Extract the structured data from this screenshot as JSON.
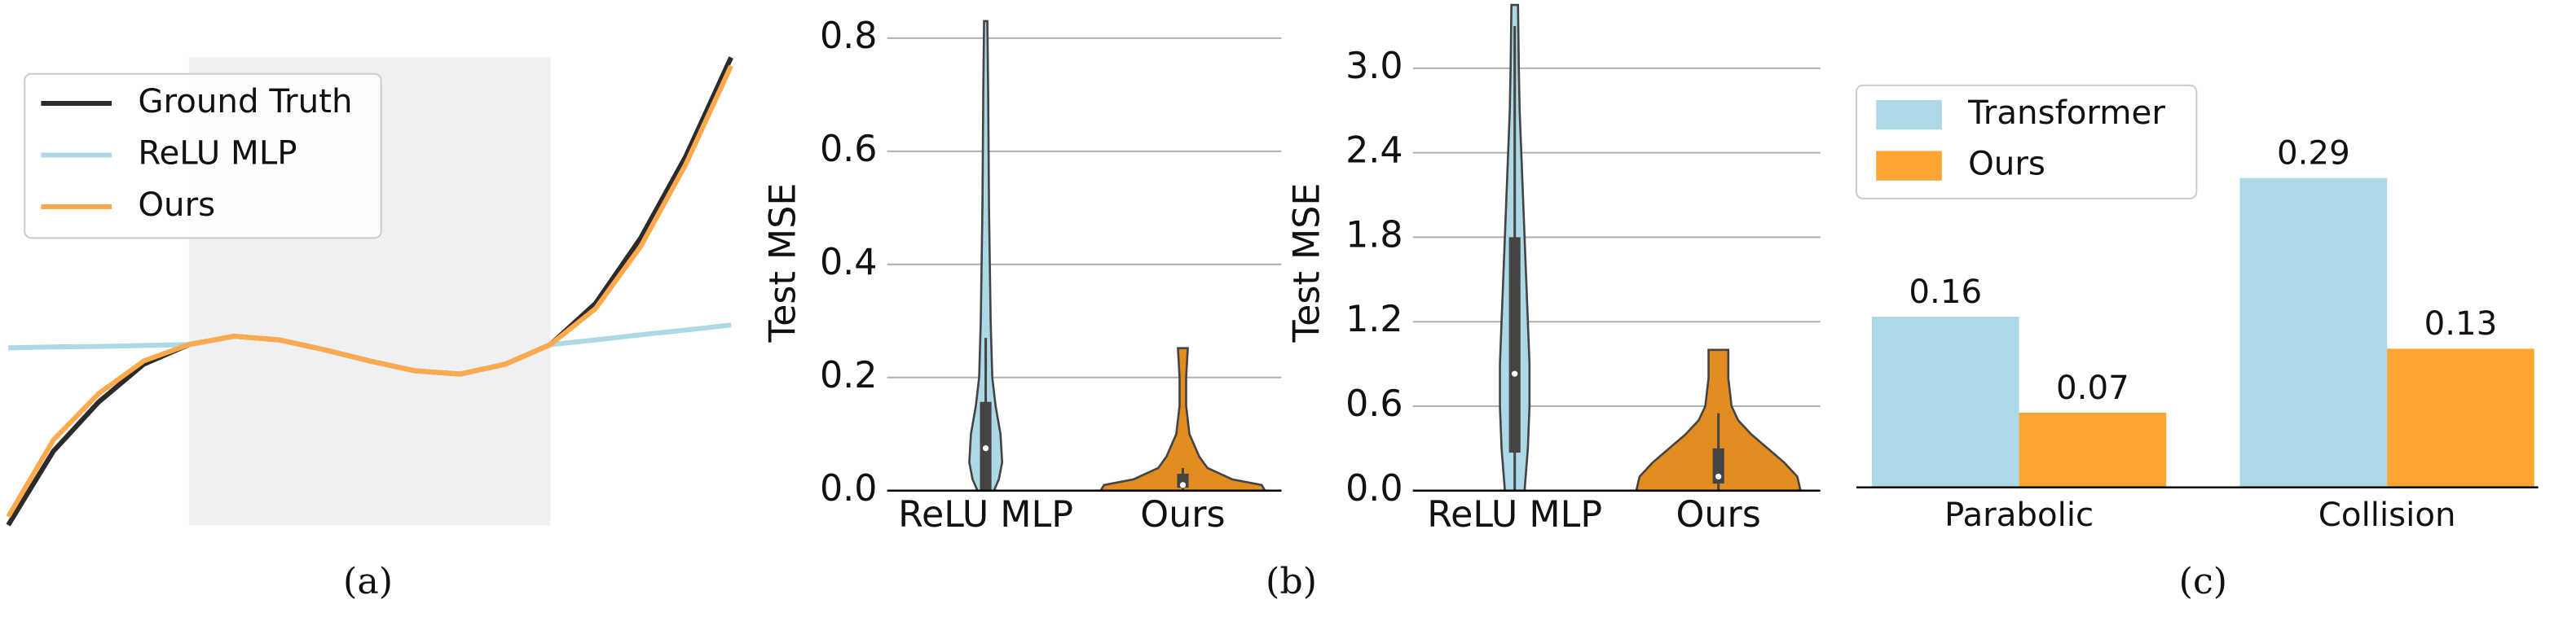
{
  "chart_data": [
    {
      "type": "line",
      "xlim": [
        -2,
        2
      ],
      "ylim": [
        0,
        10
      ],
      "highlight_x": [
        -1,
        1
      ],
      "x": [
        -2,
        -1.75,
        -1.5,
        -1.25,
        -1,
        -0.75,
        -0.5,
        -0.25,
        0,
        0.25,
        0.5,
        0.75,
        1,
        1.25,
        1.5,
        1.75,
        2
      ],
      "series": [
        {
          "name": "Ground Truth",
          "color": "#2b2b2b",
          "values": [
            0,
            1.58,
            2.63,
            3.44,
            3.86,
            4.04,
            3.96,
            3.75,
            3.51,
            3.3,
            3.23,
            3.44,
            3.86,
            4.74,
            6.14,
            7.89,
            10
          ]
        },
        {
          "name": "ReLU MLP",
          "color": "#add8e6",
          "values": [
            3.79,
            3.81,
            3.82,
            3.84,
            3.86,
            4.04,
            3.96,
            3.75,
            3.51,
            3.3,
            3.23,
            3.44,
            3.86,
            3.96,
            4.07,
            4.17,
            4.28
          ]
        },
        {
          "name": "Ours",
          "color": "#ffa94d",
          "values": [
            0.18,
            1.82,
            2.81,
            3.51,
            3.86,
            4.04,
            3.96,
            3.75,
            3.51,
            3.3,
            3.23,
            3.44,
            3.86,
            4.63,
            5.96,
            7.72,
            9.82
          ]
        }
      ],
      "legend": "upper left"
    },
    {
      "type": "violin",
      "y_label": "Test MSE",
      "ylim": [
        0,
        0.85
      ],
      "yticks": [
        {
          "value": 0,
          "label": "0.0"
        },
        {
          "value": 0.2,
          "label": "0.2"
        },
        {
          "value": 0.4,
          "label": "0.4"
        },
        {
          "value": 0.6,
          "label": "0.6"
        },
        {
          "value": 0.8,
          "label": "0.8"
        }
      ],
      "grid": true,
      "categories": [
        "ReLU MLP",
        "Ours"
      ],
      "violins": [
        {
          "color": "#add8e6",
          "profile": {
            "y": [
              0,
              0.02,
              0.05,
              0.1,
              0.15,
              0.2,
              0.3,
              0.5,
              0.7,
              0.83
            ],
            "width": [
              5,
              8,
              10,
              9,
              6,
              4,
              3,
              2,
              1.5,
              1
            ]
          },
          "box": [
            0,
            0.157
          ],
          "whisker": [
            0,
            0.27
          ],
          "median": 0.075
        },
        {
          "color": "#e38c1f",
          "profile": {
            "y": [
              0,
              0.01,
              0.02,
              0.04,
              0.06,
              0.08,
              0.1,
              0.15,
              0.2,
              0.252
            ],
            "width": [
              50,
              48,
              30,
              15,
              10,
              7,
              4,
              2,
              2,
              3
            ]
          },
          "box": [
            0.005,
            0.03
          ],
          "whisker": [
            0,
            0.04
          ],
          "median": 0.01
        }
      ]
    },
    {
      "type": "violin",
      "y_label": "Test MSE",
      "ylim": [
        0,
        3.45
      ],
      "yticks": [
        {
          "value": 0,
          "label": "0.0"
        },
        {
          "value": 0.6,
          "label": "0.6"
        },
        {
          "value": 1.2,
          "label": "1.2"
        },
        {
          "value": 1.8,
          "label": "1.8"
        },
        {
          "value": 2.4,
          "label": "2.4"
        },
        {
          "value": 3,
          "label": "3.0"
        }
      ],
      "grid": true,
      "categories": [
        "ReLU MLP",
        "Ours"
      ],
      "violins": [
        {
          "color": "#add8e6",
          "profile": {
            "y": [
              0,
              0.3,
              0.6,
              0.9,
              1.2,
              1.5,
              1.8,
              2.1,
              2.4,
              2.7,
              3,
              3.45
            ],
            "width": [
              6,
              8,
              9,
              9,
              8,
              7,
              6,
              5,
              4,
              3,
              2.5,
              2
            ]
          },
          "box": [
            0.27,
            1.8
          ],
          "whisker": [
            0,
            3.3
          ],
          "median": 0.83
        },
        {
          "color": "#e38c1f",
          "profile": {
            "y": [
              0,
              0.1,
              0.2,
              0.3,
              0.4,
              0.5,
              0.6,
              0.8,
              0.9,
              1
            ],
            "width": [
              50,
              48,
              40,
              30,
              20,
              12,
              8,
              6,
              6,
              6
            ]
          },
          "box": [
            0.05,
            0.3
          ],
          "whisker": [
            0,
            0.55
          ],
          "median": 0.1
        }
      ]
    },
    {
      "type": "bar",
      "ylim": [
        0,
        0.4
      ],
      "categories": [
        "Parabolic",
        "Collision"
      ],
      "series": [
        {
          "name": "Transformer",
          "color": "#add8e6",
          "values": [
            0.16,
            0.29
          ]
        },
        {
          "name": "Ours",
          "color": "#ffa533",
          "values": [
            0.07,
            0.13
          ]
        }
      ],
      "legend": "upper left"
    }
  ],
  "panel_labels": [
    "(a)",
    "(b)",
    "(c)"
  ]
}
